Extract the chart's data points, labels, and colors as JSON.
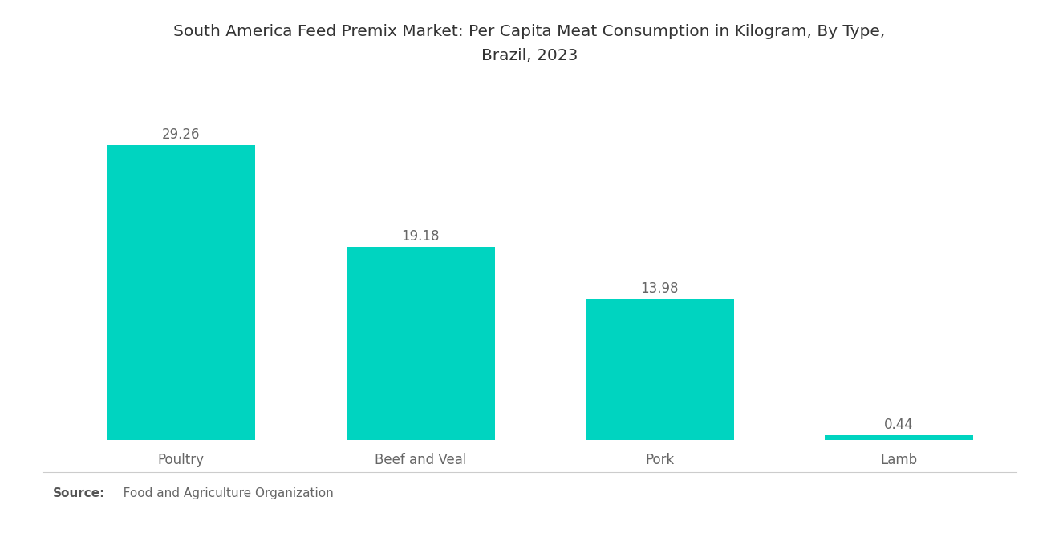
{
  "title_line1": "South America Feed Premix Market: Per Capita Meat Consumption in Kilogram, By Type,",
  "title_line2": "Brazil, 2023",
  "categories": [
    "Poultry",
    "Beef and Veal",
    "Pork",
    "Lamb"
  ],
  "values": [
    29.26,
    19.18,
    13.98,
    0.44
  ],
  "bar_color": "#00D4C0",
  "value_labels": [
    "29.26",
    "19.18",
    "13.98",
    "0.44"
  ],
  "source_bold": "Source:",
  "source_text": "   Food and Agriculture Organization",
  "background_color": "#ffffff",
  "title_fontsize": 14.5,
  "label_fontsize": 12,
  "value_fontsize": 12,
  "source_fontsize": 11,
  "ylim": [
    0,
    36
  ],
  "bar_width": 0.62
}
